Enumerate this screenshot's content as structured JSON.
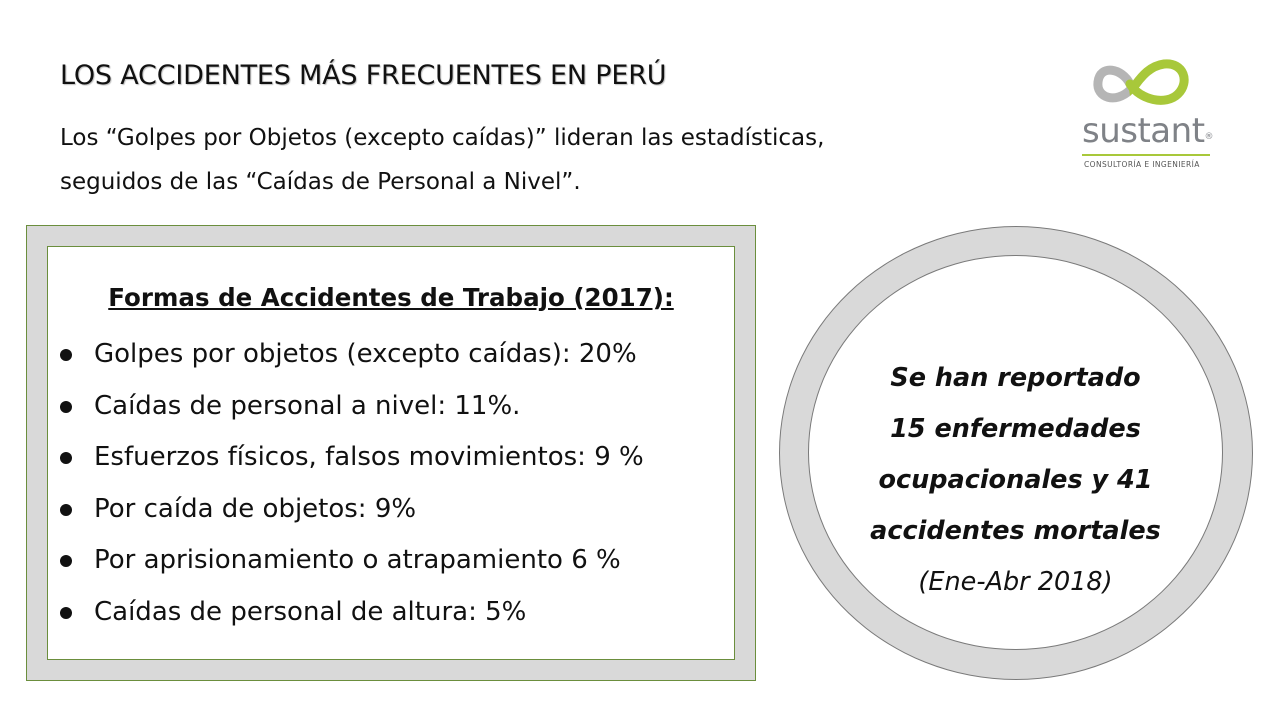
{
  "title": "LOS ACCIDENTES MÁS FRECUENTES EN PERÚ",
  "subtitle": {
    "line1": "Los “Golpes por Objetos (excepto caídas)” lideran las estadísticas,",
    "line2": "seguidos de las “Caídas de Personal a Nivel”."
  },
  "logo": {
    "word": "sustant",
    "trademark": "®",
    "tagline": "CONSULTORÍA E INGENIERÍA",
    "colors": {
      "green": "#a8c83a",
      "gray": "#9a9a9a"
    }
  },
  "accidents_box": {
    "heading": "Formas de Accidentes de Trabajo (2017):",
    "items": [
      "Golpes por objetos (excepto caídas): 20%",
      "Caídas de personal a nivel: 11%.",
      "Esfuerzos físicos, falsos movimientos: 9 %",
      "Por caída de objetos: 9%",
      "Por aprisionamiento o atrapamiento 6 %",
      "Caídas de personal de altura: 5%"
    ]
  },
  "callout": {
    "line1": "Se han reportado",
    "line2": "15 enfermedades",
    "line3": "ocupacionales y 41",
    "line4": "accidentes mortales",
    "line5": "(Ene-Abr 2018)"
  },
  "colors": {
    "frame_gray": "#d9d9d9",
    "frame_border_green": "#6b8e3d",
    "text": "#111111"
  }
}
